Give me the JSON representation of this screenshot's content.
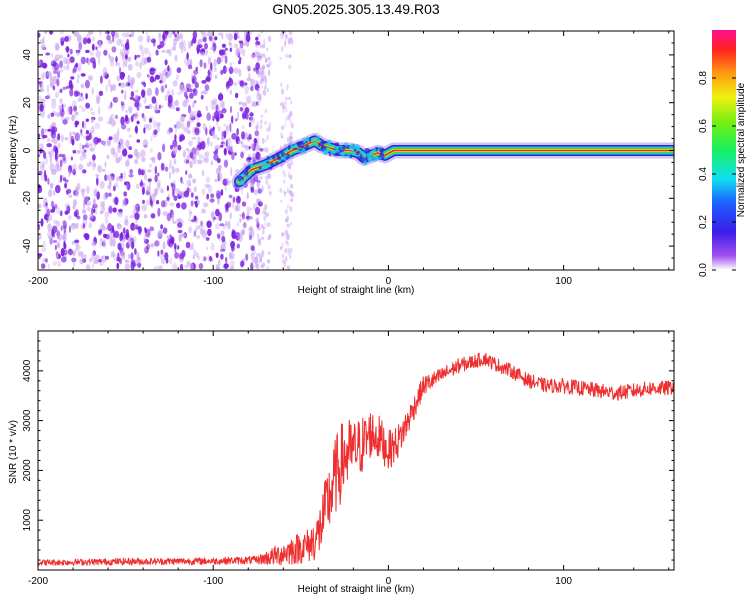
{
  "title": "GN05.2025.305.13.49.R03",
  "colors": {
    "noise": "#7a1ee0",
    "noise_light": "#c9a6f2",
    "signal_core": "#e8302c",
    "snr_line": "#ee2f2f",
    "axis": "#000000"
  },
  "chart_data": [
    {
      "type": "heatmap",
      "name": "spectrogram",
      "title": "GN05.2025.305.13.49.R03",
      "xlabel": "Height of straight line (km)",
      "ylabel": "Frequency (Hz)",
      "xlim": [
        -200,
        163
      ],
      "ylim": [
        -50,
        50
      ],
      "x_ticks": [
        -200,
        -100,
        0,
        100
      ],
      "x_tick_labels": [
        "-200",
        "-100",
        "0",
        "100"
      ],
      "y_ticks": [
        -40,
        -20,
        0,
        20,
        40
      ],
      "y_tick_labels": [
        "-40",
        "-20",
        "0",
        "20",
        "40"
      ],
      "noise_region_x": [
        -200,
        -72
      ],
      "sparse_noise_x": [
        -72,
        -52
      ],
      "signal_track": [
        {
          "x": -85,
          "f": -13
        },
        {
          "x": -78,
          "f": -8
        },
        {
          "x": -70,
          "f": -6
        },
        {
          "x": -62,
          "f": -3
        },
        {
          "x": -55,
          "f": 0
        },
        {
          "x": -48,
          "f": 2
        },
        {
          "x": -42,
          "f": 4
        },
        {
          "x": -38,
          "f": 2
        },
        {
          "x": -33,
          "f": 1
        },
        {
          "x": -28,
          "f": 0
        },
        {
          "x": -22,
          "f": 0
        },
        {
          "x": -17,
          "f": -1
        },
        {
          "x": -14,
          "f": -3
        },
        {
          "x": -10,
          "f": -2
        },
        {
          "x": -6,
          "f": -1
        },
        {
          "x": -2,
          "f": -2
        },
        {
          "x": 3,
          "f": 0
        },
        {
          "x": 163,
          "f": 0
        }
      ],
      "colorbar": {
        "label": "Normalized spectral amplitude",
        "range": [
          0,
          1
        ],
        "ticks": [
          0.0,
          0.2,
          0.4,
          0.6,
          0.8
        ],
        "tick_labels": [
          "0.0",
          "0.2",
          "0.4",
          "0.6",
          "0.8"
        ]
      }
    },
    {
      "type": "line",
      "name": "snr",
      "xlabel": "Height of straight line (km)",
      "ylabel": "SNR (10 * v/v)",
      "xlim": [
        -200,
        163
      ],
      "ylim": [
        0,
        4800
      ],
      "x_ticks": [
        -200,
        -100,
        0,
        100
      ],
      "x_tick_labels": [
        "-200",
        "-100",
        "0",
        "100"
      ],
      "y_ticks": [
        1000,
        2000,
        3000,
        4000
      ],
      "y_tick_labels": [
        "1000",
        "2000",
        "3000",
        "4000"
      ],
      "series": [
        {
          "name": "SNR",
          "x": [
            -200,
            -150,
            -100,
            -75,
            -65,
            -55,
            -45,
            -40,
            -35,
            -30,
            -25,
            -20,
            -15,
            -10,
            -5,
            0,
            5,
            10,
            15,
            20,
            30,
            40,
            50,
            55,
            60,
            70,
            80,
            90,
            100,
            110,
            120,
            130,
            140,
            150,
            160,
            163
          ],
          "y": [
            150,
            170,
            180,
            200,
            280,
            400,
            500,
            700,
            1300,
            1900,
            2300,
            2400,
            2500,
            2750,
            2650,
            2400,
            2550,
            2900,
            3300,
            3700,
            3900,
            4100,
            4200,
            4250,
            4150,
            4000,
            3800,
            3700,
            3700,
            3650,
            3600,
            3550,
            3600,
            3650,
            3650,
            3700
          ],
          "noise_amplitude": [
            60,
            70,
            70,
            80,
            200,
            300,
            350,
            500,
            700,
            800,
            800,
            600,
            600,
            500,
            450,
            400,
            350,
            300,
            250,
            200,
            160,
            150,
            140,
            140,
            140,
            140,
            140,
            140,
            150,
            150,
            150,
            150,
            150,
            150,
            150,
            150
          ]
        }
      ]
    }
  ]
}
